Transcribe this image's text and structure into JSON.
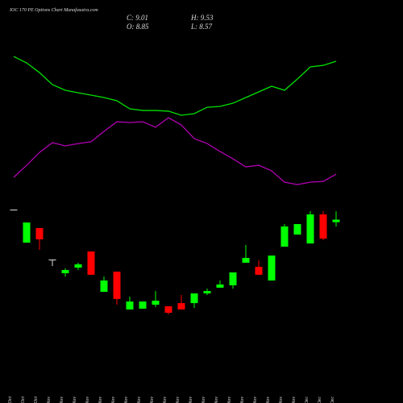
{
  "chart_data": {
    "type": "candlestick",
    "title": "IOC 170 PE Options Chart Munafasutra.com",
    "ohlc_labels": [
      "C: 9.01",
      "H: 9.53",
      "O: 8.85",
      "L: 8.57"
    ],
    "categories": [
      "29 Oct",
      "30 Oct",
      "31 Oct",
      "01 Nov",
      "04 Nov",
      "05 Nov",
      "06 Nov",
      "07 Nov",
      "08 Nov",
      "11 Nov",
      "12 Nov",
      "13 Nov",
      "14 Nov",
      "18 Nov",
      "19 Nov",
      "20 Nov",
      "21 Nov",
      "22 Nov",
      "25 Nov",
      "26 Nov",
      "27 Nov",
      "28 Nov",
      "29 Nov",
      "02 Dec",
      "03 Dec",
      "04 Dec"
    ],
    "open": [
      9.64,
      7.56,
      8.48,
      6.5,
      5.64,
      5.99,
      7.01,
      4.47,
      5.74,
      3.36,
      3.41,
      3.66,
      3.56,
      3.76,
      3.76,
      4.37,
      4.73,
      4.88,
      6.3,
      6.04,
      5.18,
      7.31,
      8.07,
      7.51,
      9.34,
      8.85
    ],
    "high": [
      9.64,
      8.83,
      8.48,
      6.5,
      5.94,
      6.3,
      7.01,
      5.43,
      5.74,
      4.17,
      3.86,
      4.52,
      3.56,
      4.27,
      4.37,
      4.67,
      5.18,
      5.69,
      7.41,
      6.45,
      6.75,
      8.73,
      8.73,
      9.54,
      9.54,
      9.53
    ],
    "low": [
      9.64,
      7.56,
      7.11,
      6.09,
      5.43,
      5.84,
      5.54,
      4.47,
      3.66,
      3.36,
      3.41,
      3.51,
      3.05,
      3.36,
      3.46,
      4.27,
      4.73,
      4.67,
      6.3,
      5.54,
      5.18,
      7.31,
      8.07,
      7.51,
      7.72,
      8.57
    ],
    "close": [
      9.64,
      8.83,
      7.77,
      6.5,
      5.84,
      6.2,
      5.54,
      5.18,
      4.02,
      3.86,
      3.86,
      3.91,
      3.15,
      3.36,
      4.37,
      4.52,
      4.93,
      5.69,
      6.6,
      5.54,
      6.75,
      8.58,
      8.73,
      9.34,
      7.82,
      9.01
    ],
    "ylim": [
      2.8,
      10.15
    ],
    "up_color": "#00ff00",
    "down_color": "#ff0000",
    "doji_color": "#dddddd",
    "indicators": {
      "ylim": [
        0,
        100
      ],
      "series": [
        {
          "color": "#00e000",
          "values": [
            94.4,
            90,
            83.3,
            75,
            71.1,
            69.4,
            67.8,
            66.1,
            63.9,
            58.3,
            57.2,
            57.2,
            56.7,
            53.9,
            55,
            59.4,
            60,
            62.2,
            66.1,
            70,
            73.9,
            71.1,
            78.9,
            87.2,
            88.3,
            91.1
          ]
        },
        {
          "color": "#b000b0",
          "values": [
            11.1,
            19.4,
            28.3,
            35,
            32.8,
            34.4,
            35.6,
            42.8,
            49.4,
            48.9,
            49.4,
            45.6,
            52.2,
            47.2,
            37.8,
            34.4,
            28.9,
            23.9,
            18.3,
            19.4,
            15.6,
            7.8,
            6.1,
            7.8,
            8.3,
            13.3
          ]
        }
      ]
    }
  }
}
